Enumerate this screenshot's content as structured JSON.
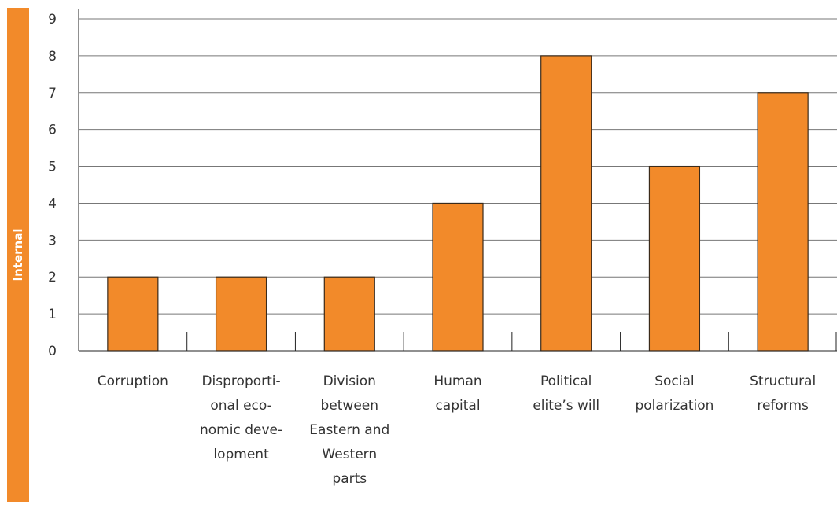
{
  "side_label": "Internal",
  "chart_data": {
    "type": "bar",
    "categories": [
      [
        "Corruption"
      ],
      [
        "Disproporti-",
        "onal eco-",
        "nomic deve-",
        "lopment"
      ],
      [
        "Division",
        "between",
        "Eastern and",
        "Western",
        "parts"
      ],
      [
        "Human",
        "capital"
      ],
      [
        "Political",
        "elite’s will"
      ],
      [
        "Social",
        "polarization"
      ],
      [
        "Structural",
        "reforms"
      ]
    ],
    "values": [
      2,
      2,
      2,
      4,
      8,
      5,
      7
    ],
    "ylim": [
      0,
      9
    ],
    "yticks": [
      "0",
      "1",
      "2",
      "3",
      "4",
      "5",
      "6",
      "7",
      "8",
      "9"
    ],
    "grid": true,
    "colors": {
      "bar": "#f28a2a",
      "bar_stroke": "#3a2a1a",
      "grid": "#777777",
      "sidebar": "#f28a2a"
    }
  }
}
